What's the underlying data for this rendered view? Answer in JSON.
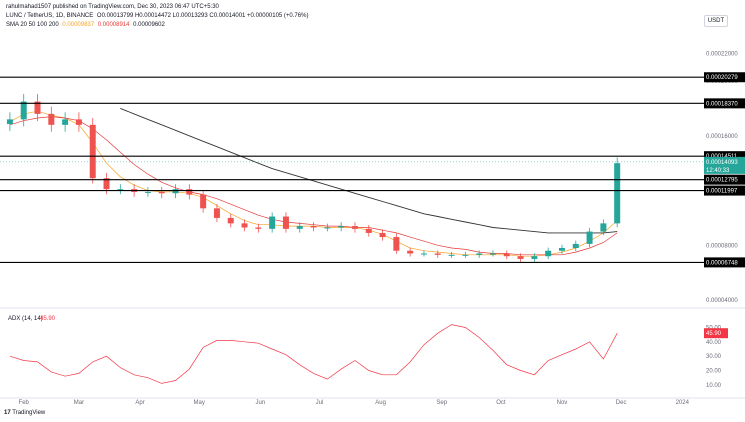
{
  "header": {
    "author_line": "rahulmahad1507 published on TradingView.com, Dec 30, 2023 06:47 UTC+5:30",
    "symbol": "LUNC / TetherUS, 1D, BINANCE",
    "ohlc": "O0.00013799 H0.00014472 L0.00013293 C0.00014001 +0.00000105 (+0.76%)",
    "sma_label": "SMA 20 50 100 200",
    "sma_values": [
      "0.00009837",
      "0.00008914",
      "0.00009602"
    ],
    "unit": "USDT"
  },
  "colors": {
    "up": "#26a69a",
    "down": "#ef5350",
    "sma20": "#f7a325",
    "sma50": "#e53935",
    "sma200": "#333333",
    "adx": "#f23645",
    "level": "#000000"
  },
  "chart_data": [
    {
      "type": "line",
      "title": "",
      "x": [
        "2023-01-25",
        "2023-02-01",
        "2023-02-08",
        "2023-02-15",
        "2023-02-22",
        "2023-03-01",
        "2023-03-08",
        "2023-03-15",
        "2023-03-22",
        "2023-03-29",
        "2023-04-05",
        "2023-04-12",
        "2023-04-19",
        "2023-04-26",
        "2023-05-03",
        "2023-05-10",
        "2023-05-17",
        "2023-05-24",
        "2023-05-31",
        "2023-06-07",
        "2023-06-14",
        "2023-06-21",
        "2023-06-28",
        "2023-07-05",
        "2023-07-12",
        "2023-07-19",
        "2023-07-26",
        "2023-08-02",
        "2023-08-09",
        "2023-08-16",
        "2023-08-23",
        "2023-08-30",
        "2023-09-06",
        "2023-09-13",
        "2023-09-20",
        "2023-09-27",
        "2023-10-04",
        "2023-10-11",
        "2023-10-18",
        "2023-10-25",
        "2023-11-01",
        "2023-11-08",
        "2023-11-15",
        "2023-11-22",
        "2023-11-29"
      ],
      "series": [
        {
          "name": "LUNC/USDT",
          "values": [
            0.000172,
            0.000185,
            0.000176,
            0.000168,
            0.000172,
            0.000168,
            0.000129,
            0.000121,
            0.000121,
            0.000119,
            0.000119,
            0.000118,
            0.000121,
            0.000117,
            0.000107,
            0.0001,
            9.6e-05,
            9.3e-05,
            9.2e-05,
            0.000101,
            9.2e-05,
            9.4e-05,
            9.3e-05,
            9.3e-05,
            9.4e-05,
            9.2e-05,
            8.9e-05,
            8.6e-05,
            7.6e-05,
            7.4e-05,
            7.4e-05,
            7.3e-05,
            7.3e-05,
            7.3e-05,
            7.4e-05,
            7.4e-05,
            7.2e-05,
            7e-05,
            7.2e-05,
            7.6e-05,
            7.8e-05,
            8.1e-05,
            9e-05,
            9.6e-05,
            0.00014
          ]
        },
        {
          "name": "SMA 20",
          "values": [
            0.00017,
            0.000176,
            0.000178,
            0.000175,
            0.000173,
            0.000168,
            0.000155,
            0.00014,
            0.00013,
            0.000124,
            0.00012,
            0.000119,
            0.000119,
            0.000118,
            0.000115,
            0.000109,
            0.000103,
            9.8e-05,
            9.5e-05,
            9.5e-05,
            9.4e-05,
            9.4e-05,
            9.4e-05,
            9.3e-05,
            9.3e-05,
            9.3e-05,
            9.1e-05,
            8.8e-05,
            8.3e-05,
            7.8e-05,
            7.6e-05,
            7.5e-05,
            7.4e-05,
            7.3e-05,
            7.3e-05,
            7.3e-05,
            7.3e-05,
            7.2e-05,
            7.2e-05,
            7.3e-05,
            7.5e-05,
            7.8e-05,
            8.3e-05,
            8.9e-05,
            9.8e-05
          ]
        },
        {
          "name": "SMA 50",
          "values": [
            0.000168,
            0.000171,
            0.000173,
            0.000174,
            0.000173,
            0.000171,
            0.000165,
            0.000157,
            0.000148,
            0.000139,
            0.000132,
            0.000126,
            0.000122,
            0.000119,
            0.000117,
            0.000114,
            0.00011,
            0.000106,
            0.000102,
            9.9e-05,
            9.7e-05,
            9.6e-05,
            9.5e-05,
            9.4e-05,
            9.4e-05,
            9.3e-05,
            9.3e-05,
            9.1e-05,
            8.9e-05,
            8.6e-05,
            8.3e-05,
            8e-05,
            7.8e-05,
            7.7e-05,
            7.5e-05,
            7.4e-05,
            7.4e-05,
            7.3e-05,
            7.3e-05,
            7.3e-05,
            7.3e-05,
            7.5e-05,
            7.8e-05,
            8.2e-05,
            8.9e-05
          ]
        },
        {
          "name": "SMA 200",
          "values": [
            null,
            null,
            null,
            null,
            null,
            null,
            null,
            null,
            0.00018,
            0.000176,
            0.000172,
            0.000168,
            0.000164,
            0.00016,
            0.000156,
            0.000152,
            0.000148,
            0.000144,
            0.00014,
            0.000136,
            0.000133,
            0.00013,
            0.000127,
            0.000124,
            0.000121,
            0.000118,
            0.000115,
            0.000112,
            0.000109,
            0.000106,
            0.000103,
            0.000101,
            9.9e-05,
            9.7e-05,
            9.5e-05,
            9.3e-05,
            9.2e-05,
            9.1e-05,
            9e-05,
            8.9e-05,
            8.9e-05,
            8.9e-05,
            8.9e-05,
            8.9e-05,
            9e-05
          ]
        }
      ],
      "horizontal_levels": [
        0.00020279,
        0.0001837,
        0.00014511,
        0.00012795,
        0.00011997,
        6.748e-05
      ],
      "last_price": 0.00014093,
      "last_price_sub": "12:40:33",
      "y_ticks": [
        0.00022,
        0.0002,
        0.00016,
        0.00012,
        8e-05,
        4e-05
      ],
      "ylim": [
        4e-05,
        0.00023
      ],
      "x_tick_labels": [
        "Feb",
        "Mar",
        "Apr",
        "May",
        "Jun",
        "Jul",
        "Aug",
        "Sep",
        "Oct",
        "Nov",
        "Dec",
        "2024"
      ],
      "grid": false,
      "legend": "top-left"
    },
    {
      "type": "line",
      "title": "ADX (14, 14)",
      "value_label": "45.90",
      "x": [
        "2023-01-25",
        "2023-02-01",
        "2023-02-08",
        "2023-02-15",
        "2023-02-22",
        "2023-03-01",
        "2023-03-08",
        "2023-03-15",
        "2023-03-22",
        "2023-03-29",
        "2023-04-05",
        "2023-04-12",
        "2023-04-19",
        "2023-04-26",
        "2023-05-03",
        "2023-05-10",
        "2023-05-17",
        "2023-05-24",
        "2023-05-31",
        "2023-06-07",
        "2023-06-14",
        "2023-06-21",
        "2023-06-28",
        "2023-07-05",
        "2023-07-12",
        "2023-07-19",
        "2023-07-26",
        "2023-08-02",
        "2023-08-09",
        "2023-08-16",
        "2023-08-23",
        "2023-08-30",
        "2023-09-06",
        "2023-09-13",
        "2023-09-20",
        "2023-09-27",
        "2023-10-04",
        "2023-10-11",
        "2023-10-18",
        "2023-10-25",
        "2023-11-01",
        "2023-11-08",
        "2023-11-15",
        "2023-11-22",
        "2023-11-29"
      ],
      "series": [
        {
          "name": "ADX",
          "values": [
            30,
            27,
            26,
            19,
            16,
            18,
            26,
            30,
            22,
            17,
            15,
            11,
            13,
            21,
            36,
            41,
            41,
            40,
            39,
            35,
            31,
            24,
            18,
            14,
            21,
            27,
            20,
            17,
            17,
            26,
            38,
            46,
            52,
            50,
            43,
            34,
            24,
            20,
            17,
            27,
            31,
            35,
            40,
            28,
            46
          ]
        }
      ],
      "y_ticks": [
        50,
        40,
        30,
        20,
        10
      ],
      "ylim": [
        5,
        58
      ]
    }
  ]
}
